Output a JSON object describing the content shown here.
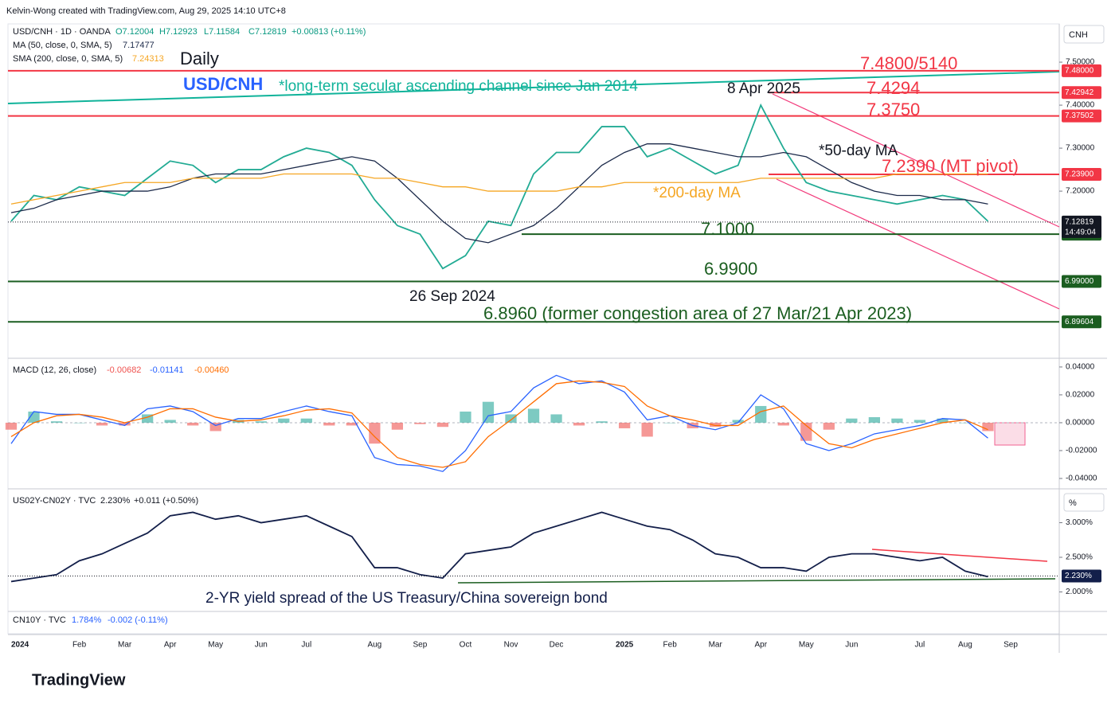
{
  "header": {
    "credit": "Kelvin-Wong created with TradingView.com, Aug 29, 2025 14:10 UTC+8",
    "brand": "TradingView",
    "currency": "CNH",
    "percent": "%"
  },
  "annotations": {
    "daily": "Daily",
    "pair": "USD/CNH",
    "channel": "*long-term secular ascending channel since Jan 2014",
    "apr": "8 Apr 2025",
    "r1": "7.4800/5140",
    "r2": "7.4294",
    "r3": "7.3750",
    "ma50": "*50-day MA",
    "pivot": "7.2390 (MT pivot)",
    "ma200": "*200-day MA",
    "s1": "7.1000",
    "s2": "6.9900",
    "sep": "26 Sep 2024",
    "s3": "6.8960 (former congestion area of 27 Mar/21 Apr 2023)",
    "spread": "2-YR yield spread of the US Treasury/China sovereign bond"
  },
  "chart_data": [
    {
      "type": "line",
      "legend": [
        "USD/CNH · 1D · OANDA",
        "O7.12004",
        "H7.12923",
        "L7.11584",
        "C7.12819",
        "+0.00813 (+0.11%)",
        "MA (50, close, 0, SMA, 5)",
        "7.17477",
        "SMA (200, close, 0, SMA, 5)",
        "7.24313"
      ],
      "categories": [
        "2024",
        null,
        null,
        "Feb",
        null,
        "Mar",
        null,
        "Apr",
        null,
        "May",
        null,
        "Jun",
        null,
        "Jul",
        null,
        null,
        "Aug",
        null,
        "Sep",
        null,
        "Oct",
        null,
        "Nov",
        null,
        "Dec",
        null,
        null,
        "2025",
        null,
        "Feb",
        null,
        "Mar",
        null,
        "Apr",
        null,
        "May",
        null,
        "Jun",
        null,
        null,
        "Jul",
        null,
        "Aug",
        null,
        "Sep"
      ],
      "series": [
        {
          "name": "USD/CNH",
          "color": "#22ab94",
          "values": [
            7.13,
            7.19,
            7.18,
            7.21,
            7.2,
            7.19,
            7.23,
            7.27,
            7.26,
            7.22,
            7.25,
            7.25,
            7.28,
            7.3,
            7.29,
            7.26,
            7.18,
            7.12,
            7.1,
            7.02,
            7.05,
            7.13,
            7.12,
            7.24,
            7.29,
            7.29,
            7.35,
            7.35,
            7.28,
            7.3,
            7.27,
            7.24,
            7.26,
            7.4,
            7.3,
            7.22,
            7.2,
            7.19,
            7.18,
            7.17,
            7.18,
            7.19,
            7.18,
            7.13,
            null
          ]
        },
        {
          "name": "MA (50, close, 0, SMA, 5)",
          "color": "#1c2a4a",
          "values": [
            7.15,
            7.16,
            7.18,
            7.19,
            7.2,
            7.2,
            7.2,
            7.21,
            7.23,
            7.24,
            7.24,
            7.24,
            7.25,
            7.26,
            7.27,
            7.28,
            7.27,
            7.23,
            7.18,
            7.13,
            7.09,
            7.08,
            7.1,
            7.12,
            7.16,
            7.21,
            7.26,
            7.29,
            7.31,
            7.31,
            7.3,
            7.29,
            7.28,
            7.28,
            7.29,
            7.28,
            7.25,
            7.22,
            7.2,
            7.19,
            7.19,
            7.18,
            7.18,
            7.17,
            null
          ]
        },
        {
          "name": "SMA (200, close, 0, SMA, 5)",
          "color": "#f5a623",
          "values": [
            7.17,
            7.18,
            7.19,
            7.2,
            7.21,
            7.22,
            7.22,
            7.22,
            7.23,
            7.23,
            7.23,
            7.23,
            7.24,
            7.24,
            7.24,
            7.24,
            7.23,
            7.23,
            7.22,
            7.21,
            7.21,
            7.2,
            7.2,
            7.2,
            7.2,
            7.21,
            7.21,
            7.22,
            7.22,
            7.22,
            7.22,
            7.22,
            7.22,
            7.23,
            7.23,
            7.23,
            7.23,
            7.23,
            7.23,
            7.24,
            7.24,
            7.24,
            7.24,
            7.24,
            null
          ]
        }
      ],
      "ylim": [
        6.815,
        7.589
      ],
      "yticks": [
        {
          "value": 7.5,
          "label": "7.50000"
        },
        {
          "value": 7.4,
          "label": "7.40000"
        },
        {
          "value": 7.3,
          "label": "7.30000"
        },
        {
          "value": 7.2,
          "label": "7.20000"
        }
      ],
      "levels": [
        {
          "value": 7.48,
          "label": "7.48000",
          "color": "#f23645"
        },
        {
          "value": 7.4294,
          "label": "7.42942",
          "color": "#f23645"
        },
        {
          "value": 7.375,
          "label": "7.37502",
          "color": "#f23645"
        },
        {
          "value": 7.239,
          "label": "7.23900",
          "color": "#f23645"
        },
        {
          "value": 7.1,
          "label": "7.10000",
          "color": "#1b5e20"
        },
        {
          "value": 6.99,
          "label": "6.99000",
          "color": "#1b5e20"
        },
        {
          "value": 6.896,
          "label": "6.89604",
          "color": "#1b5e20"
        }
      ],
      "current": {
        "value": 7.12819,
        "label": "7.12819",
        "countdown": "14:49:04"
      }
    },
    {
      "type": "macd",
      "legend": [
        "MACD (12, 26, close)",
        "-0.00682",
        "-0.01141",
        "-0.00460"
      ],
      "series": [
        {
          "name": "Histogram",
          "color": "#26a69a",
          "negative_color": "#ef5350",
          "bars": true,
          "values": [
            -0.005,
            0.008,
            0.001,
            0,
            -0.002,
            -0.002,
            0.006,
            0.002,
            -0.002,
            -0.006,
            0.002,
            0.001,
            0.003,
            0.003,
            -0.002,
            -0.002,
            -0.015,
            -0.005,
            -0.001,
            -0.003,
            0.008,
            0.015,
            0.006,
            0.01,
            0.006,
            -0.002,
            0.001,
            -0.004,
            -0.01,
            0,
            -0.004,
            -0.003,
            0.002,
            0.012,
            -0.002,
            -0.013,
            -0.005,
            0.003,
            0.004,
            0.003,
            0.002,
            0.003,
            0,
            -0.006,
            null
          ]
        },
        {
          "name": "MACD",
          "color": "#2962ff",
          "values": [
            -0.015,
            0.008,
            0.006,
            0.006,
            0.002,
            -0.002,
            0.01,
            0.012,
            0.008,
            -0.002,
            0.003,
            0.003,
            0.008,
            0.012,
            0.008,
            0.005,
            -0.025,
            -0.03,
            -0.031,
            -0.035,
            -0.02,
            0.005,
            0.008,
            0.025,
            0.034,
            0.028,
            0.03,
            0.022,
            0.002,
            0.005,
            -0.002,
            -0.005,
            0.0,
            0.02,
            0.01,
            -0.015,
            -0.02,
            -0.015,
            -0.008,
            -0.005,
            -0.002,
            0.003,
            0.002,
            -0.011,
            null
          ]
        },
        {
          "name": "Signal",
          "color": "#ff6d00",
          "values": [
            -0.01,
            0.0,
            0.005,
            0.006,
            0.004,
            0.0,
            0.004,
            0.01,
            0.01,
            0.004,
            0.001,
            0.002,
            0.005,
            0.009,
            0.01,
            0.007,
            -0.01,
            -0.025,
            -0.03,
            -0.032,
            -0.028,
            -0.01,
            0.002,
            0.015,
            0.028,
            0.03,
            0.029,
            0.026,
            0.012,
            0.005,
            0.002,
            -0.002,
            -0.002,
            0.008,
            0.012,
            -0.002,
            -0.015,
            -0.018,
            -0.012,
            -0.008,
            -0.004,
            0.0,
            0.002,
            -0.005,
            null
          ]
        }
      ],
      "ylim": [
        -0.0463,
        0.0451
      ],
      "yticks": [
        {
          "value": 0.04,
          "label": "0.04000"
        },
        {
          "value": 0.02,
          "label": "0.02000"
        },
        {
          "value": 0,
          "label": "0.00000"
        },
        {
          "value": -0.02,
          "label": "-0.02000"
        },
        {
          "value": -0.04,
          "label": "-0.04000"
        }
      ]
    },
    {
      "type": "line",
      "legend": [
        "US02Y-CN02Y · TVC",
        "2.230%",
        "+0.011 (+0.50%)"
      ],
      "series": [
        {
          "name": "US02Y-CN02Y",
          "color": "#131f4a",
          "values": [
            2.15,
            2.2,
            2.25,
            2.45,
            2.55,
            2.7,
            2.85,
            3.1,
            3.15,
            3.05,
            3.1,
            3.0,
            3.05,
            3.1,
            2.95,
            2.8,
            2.35,
            2.35,
            2.25,
            2.2,
            2.55,
            2.6,
            2.65,
            2.85,
            2.95,
            3.05,
            3.15,
            3.05,
            2.95,
            2.9,
            2.75,
            2.55,
            2.5,
            2.35,
            2.35,
            2.3,
            2.5,
            2.55,
            2.55,
            2.5,
            2.45,
            2.5,
            2.3,
            2.22,
            null
          ]
        }
      ],
      "ylim": [
        1.741,
        3.466
      ],
      "yticks": [
        {
          "value": 3,
          "label": "3.000%"
        },
        {
          "value": 2.5,
          "label": "2.500%"
        },
        {
          "value": 2,
          "label": "2.000%"
        }
      ],
      "current": {
        "value": 2.23,
        "label": "2.230%"
      }
    },
    {
      "type": "empty",
      "legend": [
        "CN10Y · TVC",
        "1.784%",
        "-0.002 (-0.11%)"
      ]
    }
  ]
}
